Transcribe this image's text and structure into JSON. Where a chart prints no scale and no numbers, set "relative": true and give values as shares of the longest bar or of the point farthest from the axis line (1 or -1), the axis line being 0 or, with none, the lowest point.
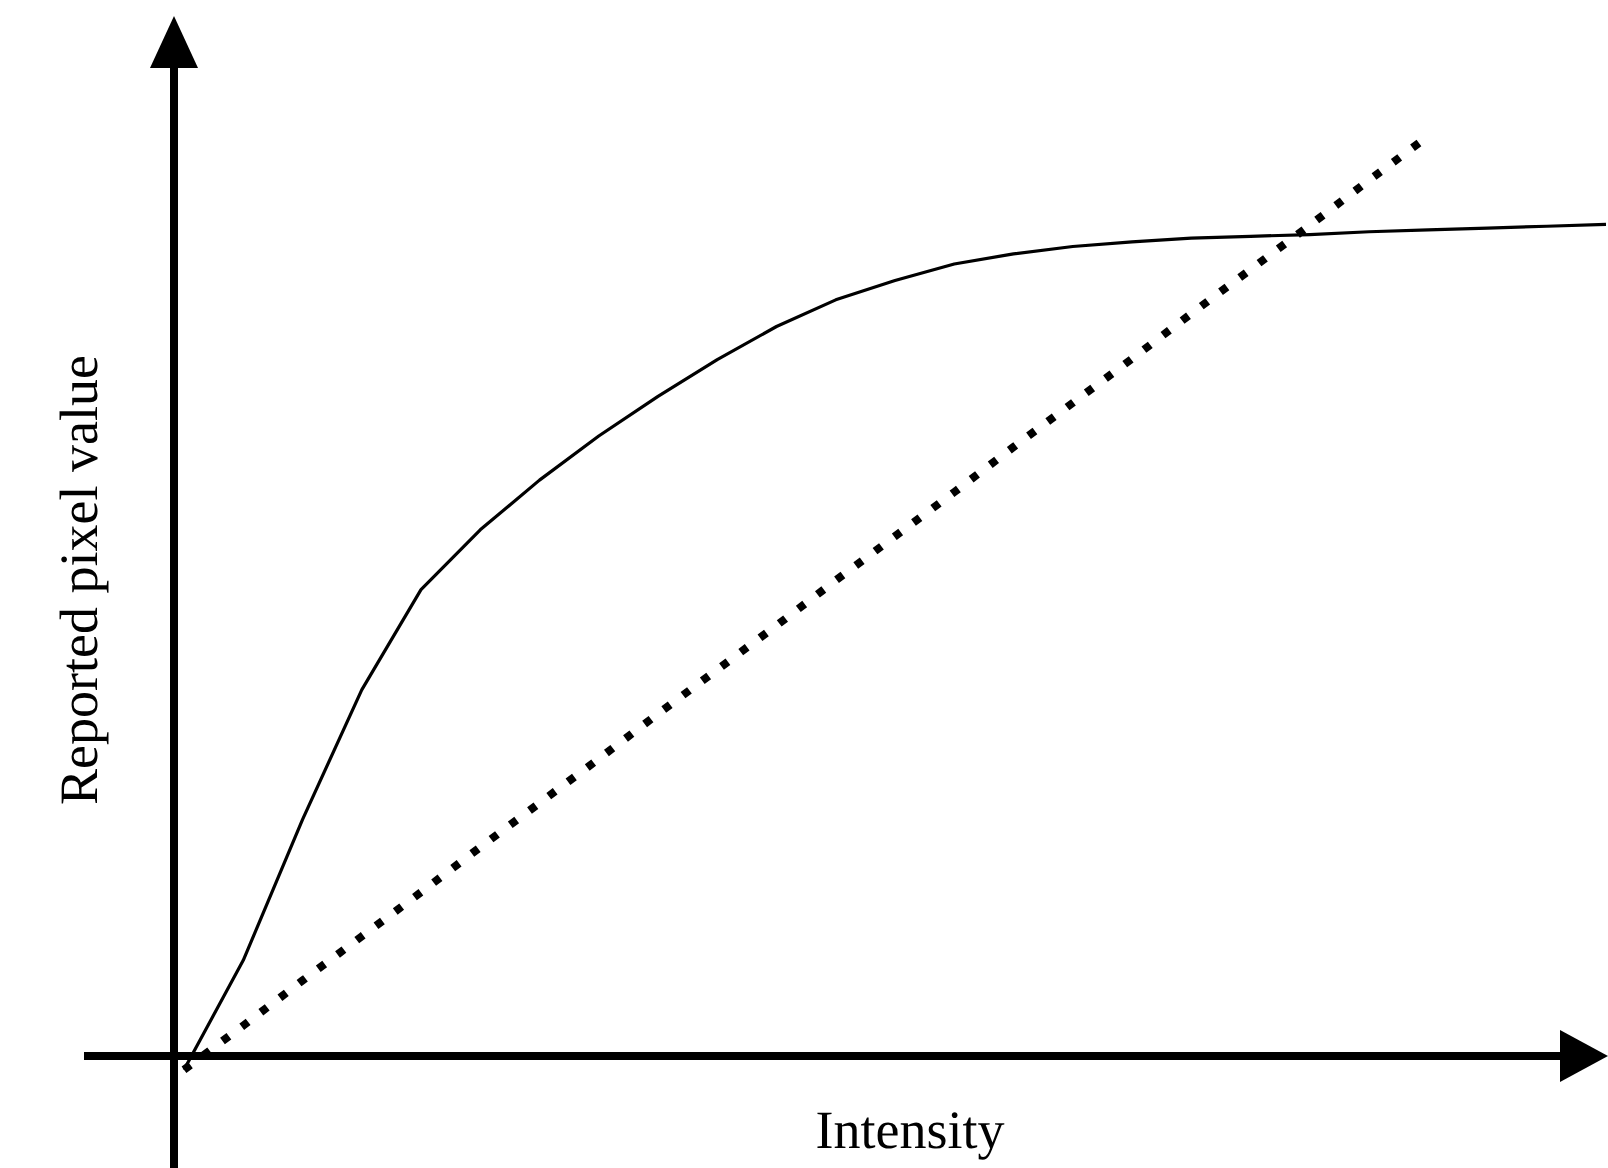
{
  "chart_data": {
    "type": "line",
    "relative": true,
    "xlabel": "Intensity",
    "ylabel": "Reported pixel value",
    "marker": "none",
    "categories": [
      null,
      null,
      null,
      null,
      null,
      null,
      null,
      null,
      null,
      null,
      null,
      null,
      null,
      null,
      null,
      null,
      null,
      null,
      null,
      null,
      null,
      null,
      null,
      null,
      null
    ],
    "series": [
      {
        "color": "#000000",
        "line_style": "solid",
        "values": [
          -0.015,
          0.104,
          0.257,
          0.398,
          0.507,
          0.572,
          0.626,
          0.674,
          0.717,
          0.757,
          0.793,
          0.822,
          0.843,
          0.861,
          0.872,
          0.88,
          0.885,
          0.889,
          0.891,
          0.893,
          0.896,
          0.898,
          0.9,
          0.902,
          0.904
        ]
      },
      {
        "color": "#000000",
        "line_style": "dotted",
        "values": [
          -0.015,
          0.033,
          0.082,
          0.13,
          0.178,
          0.227,
          0.275,
          0.323,
          0.372,
          0.42,
          0.468,
          0.517,
          0.565,
          0.613,
          0.662,
          0.71,
          0.758,
          0.807,
          0.855,
          0.903,
          0.952,
          1.0,
          null,
          null,
          null
        ]
      }
    ]
  }
}
